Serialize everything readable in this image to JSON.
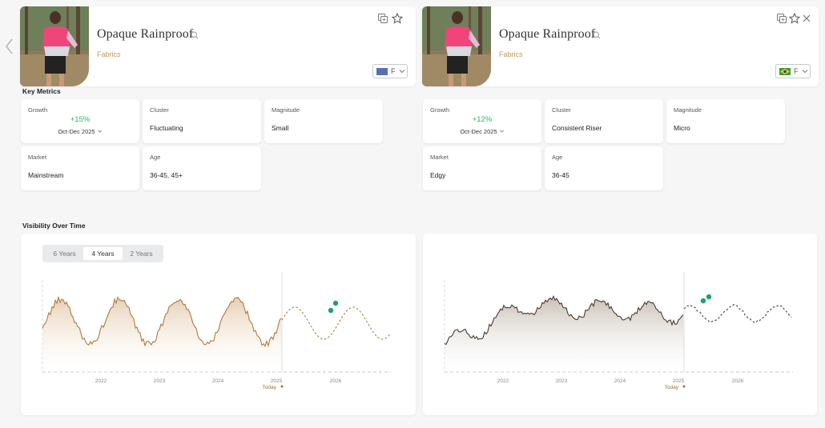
{
  "trends": [
    {
      "title": "Opaque Rainproof",
      "category": "Fabrics",
      "flag_letter": "F",
      "flag_color": "#5a6fb3",
      "metrics": {
        "growth": {
          "label": "Growth",
          "value": "+15%",
          "period": "Oct-Dec 2025"
        },
        "cluster": {
          "label": "Cluster",
          "value": "Fluctuating"
        },
        "magnitude": {
          "label": "Magnitude",
          "value": "Small"
        },
        "market": {
          "label": "Market",
          "value": "Mainstream"
        },
        "age": {
          "label": "Age",
          "value": "36-45, 45+"
        }
      },
      "chart": {
        "x_ticks": [
          "2022",
          "2023",
          "2024",
          "2025",
          "2026"
        ],
        "today_label": "Today"
      }
    },
    {
      "title": "Opaque Rainproof",
      "category": "Fabrics",
      "flag_letter": "F",
      "flag_color": "#3f9a3a",
      "metrics": {
        "growth": {
          "label": "Growth",
          "value": "+12%",
          "period": "Oct-Dec 2025"
        },
        "cluster": {
          "label": "Cluster",
          "value": "Consistent Riser"
        },
        "magnitude": {
          "label": "Magnitude",
          "value": "Micro"
        },
        "market": {
          "label": "Market",
          "value": "Edgy"
        },
        "age": {
          "label": "Age",
          "value": "36-45"
        }
      },
      "chart": {
        "x_ticks": [
          "2022",
          "2023",
          "2024",
          "2025",
          "2026"
        ],
        "today_label": "Today"
      }
    }
  ],
  "sections": {
    "key_metrics": "Key Metrics",
    "visibility": "Visibility Over Time"
  },
  "range_tabs": [
    "6 Years",
    "4 Years",
    "2 Years"
  ],
  "active_range_tab": "4 Years",
  "colors": {
    "accent_tan": "#c4975d",
    "growth_green": "#2fb36a",
    "chart1_line": "#b07a3c",
    "chart2_line": "#4a3a2f",
    "forecast_dot": "#1aa36a"
  },
  "icons": {
    "nav": "chevron-left-icon",
    "search": "search-icon",
    "copy": "copy-icon",
    "star": "star-icon",
    "close": "close-icon",
    "chevron": "chevron-down-icon"
  }
}
